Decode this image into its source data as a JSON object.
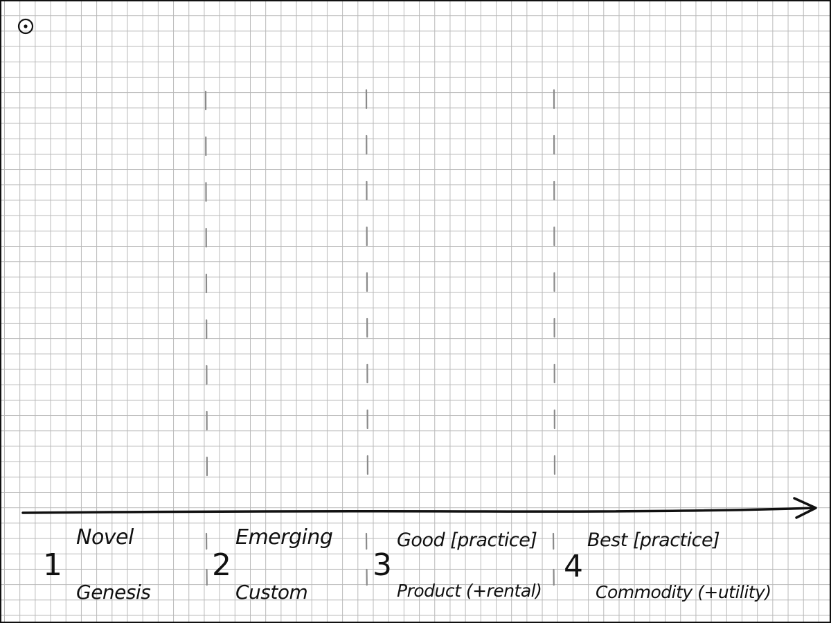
{
  "diagram": {
    "stages": [
      {
        "number": "1",
        "top_label": "Novel",
        "bottom_label": "Genesis"
      },
      {
        "number": "2",
        "top_label": "Emerging",
        "bottom_label": "Custom"
      },
      {
        "number": "3",
        "top_label": "Good [practice]",
        "bottom_label": "Product (+rental)"
      },
      {
        "number": "4",
        "top_label": "Best [practice]",
        "bottom_label": "Commodity (+utility)"
      }
    ],
    "colors": {
      "ink": "#111111",
      "divider": "#8a8a8a",
      "grid": "#b9b9b9",
      "paper": "#ffffff"
    },
    "icons": {
      "corner": "target-dot-icon",
      "axis_end": "arrowhead-icon"
    }
  }
}
